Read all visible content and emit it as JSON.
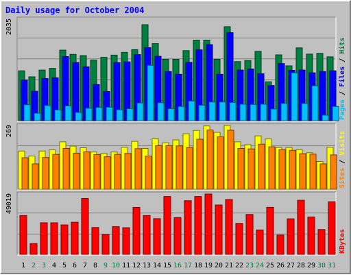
{
  "title": "Daily usage for October 2004",
  "colors": {
    "outer_bg": "#C0C0C0",
    "plot_bg": "#C0C0C0",
    "hits": "#008040",
    "files": "#0000FF",
    "pages": "#00C0FF",
    "visits": "#FFFF00",
    "sites": "#FF8000",
    "kbytes": "#FF0000",
    "title_text": "#0000FF",
    "weekend_day": "#008040",
    "weekday_day": "#000000"
  },
  "legend": {
    "panel1": [
      {
        "text": "Pages",
        "color": "#00C0FF"
      },
      {
        "text": " / ",
        "color": "#000000"
      },
      {
        "text": "Files",
        "color": "#0000FF"
      },
      {
        "text": " / ",
        "color": "#000000"
      },
      {
        "text": "Hits",
        "color": "#008040"
      }
    ],
    "panel2": [
      {
        "text": "Sites",
        "color": "#FF8000"
      },
      {
        "text": " / ",
        "color": "#000000"
      },
      {
        "text": "Visits",
        "color": "#FFFF00"
      }
    ],
    "panel3": [
      {
        "text": "KBytes",
        "color": "#FF0000"
      }
    ]
  },
  "chart_data": {
    "type": "bar",
    "title": "Daily usage for October 2004",
    "categories": [
      "1",
      "2",
      "3",
      "4",
      "5",
      "6",
      "7",
      "8",
      "9",
      "10",
      "11",
      "12",
      "13",
      "14",
      "15",
      "16",
      "17",
      "18",
      "19",
      "20",
      "21",
      "22",
      "23",
      "24",
      "25",
      "26",
      "27",
      "28",
      "29",
      "30",
      "31"
    ],
    "weekend_days": [
      "2",
      "3",
      "9",
      "10",
      "16",
      "17",
      "23",
      "24",
      "30",
      "31"
    ],
    "panels": [
      {
        "name": "hits-files-pages",
        "ymax_label": "2035",
        "ymax": 2035,
        "grid": true,
        "series": [
          {
            "name": "Hits",
            "values": [
              1000,
              880,
              1015,
              1050,
              1415,
              1330,
              1305,
              1215,
              1270,
              1315,
              1370,
              1425,
              1925,
              1545,
              1230,
              1230,
              1405,
              1615,
              1615,
              1230,
              1885,
              1185,
              1205,
              1390,
              780,
              1320,
              1100,
              1460,
              1335,
              1350,
              1280
            ]
          },
          {
            "name": "Files",
            "values": [
              815,
              590,
              845,
              860,
              1285,
              1165,
              1080,
              725,
              585,
              1165,
              1180,
              1325,
              1465,
              1290,
              985,
              930,
              1170,
              1420,
              1525,
              930,
              1765,
              1015,
              1035,
              940,
              705,
              1145,
              1010,
              1015,
              960,
              985,
              1000
            ]
          },
          {
            "name": "Pages",
            "values": [
              320,
              150,
              305,
              215,
              295,
              165,
              250,
              265,
              270,
              220,
              240,
              355,
              1110,
              360,
              240,
              285,
              395,
              310,
              375,
              375,
              365,
              330,
              325,
              330,
              235,
              345,
              960,
              345,
              700,
              110,
              285
            ]
          }
        ]
      },
      {
        "name": "visits-sites",
        "ymax_label": "269",
        "ymax": 269,
        "grid": true,
        "series": [
          {
            "name": "Visits",
            "values": [
              161,
              140,
              161,
              166,
              200,
              182,
              175,
              157,
              151,
              157,
              177,
              202,
              172,
              213,
              196,
              208,
              234,
              248,
              267,
              240,
              269,
              200,
              188,
              225,
              212,
              176,
              176,
              167,
              154,
              117,
              177
            ]
          },
          {
            "name": "Sites",
            "values": [
              133,
              107,
              134,
              147,
              172,
              152,
              158,
              146,
              137,
              147,
              151,
              171,
              140,
              184,
              184,
              183,
              176,
              211,
              250,
              221,
              249,
              172,
              170,
              190,
              179,
              167,
              164,
              150,
              148,
              107,
              145
            ]
          }
        ]
      },
      {
        "name": "kbytes",
        "ymax_label": "49019",
        "ymax": 49019,
        "grid": true,
        "series": [
          {
            "name": "KBytes",
            "values": [
              31550,
              8820,
              25650,
              25650,
              23930,
              26100,
              45400,
              21820,
              16140,
              22480,
              21660,
              38180,
              31550,
              29030,
              47000,
              29860,
              43590,
              47000,
              49019,
              40110,
              44570,
              25160,
              32400,
              19850,
              38210,
              15680,
              28900,
              43970,
              30420,
              20170,
              42750
            ]
          }
        ]
      }
    ]
  }
}
